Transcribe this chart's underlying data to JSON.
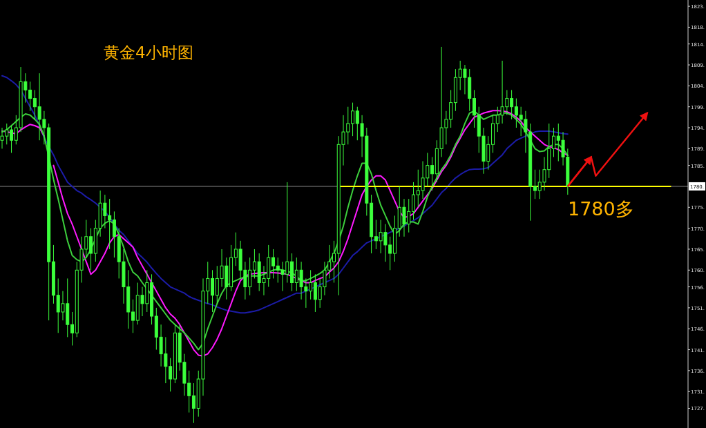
{
  "chart_data": {
    "type": "candlestick",
    "title": "黄金4小时图",
    "annotations": [
      "1780多"
    ],
    "tick_labels": "y",
    "ylim": [
      1722.3,
      1824.5
    ],
    "yticks": [
      {
        "value": 1823,
        "label": "1823."
      },
      {
        "value": 1818,
        "label": "1818."
      },
      {
        "value": 1814,
        "label": "1814."
      },
      {
        "value": 1809,
        "label": "1809."
      },
      {
        "value": 1804,
        "label": "1804."
      },
      {
        "value": 1799,
        "label": "1799."
      },
      {
        "value": 1794,
        "label": "1794."
      },
      {
        "value": 1789,
        "label": "1789."
      },
      {
        "value": 1785,
        "label": "1785."
      },
      {
        "value": 1775,
        "label": "1775."
      },
      {
        "value": 1770,
        "label": "1770."
      },
      {
        "value": 1765,
        "label": "1765."
      },
      {
        "value": 1760,
        "label": "1760."
      },
      {
        "value": 1756,
        "label": "1756."
      },
      {
        "value": 1751,
        "label": "1751."
      },
      {
        "value": 1746,
        "label": "1746."
      },
      {
        "value": 1741,
        "label": "1741."
      },
      {
        "value": 1736,
        "label": "1736."
      },
      {
        "value": 1731,
        "label": "1731."
      },
      {
        "value": 1727,
        "label": "1727."
      }
    ],
    "ref_lines": [
      {
        "axis": "y",
        "value": 1780,
        "label": "1780.",
        "color": "#8c8c8c"
      }
    ],
    "categories": [
      null,
      null,
      null,
      null,
      null,
      null,
      null,
      null,
      null,
      null,
      null,
      null,
      null,
      null,
      null,
      null,
      null,
      null,
      null,
      null,
      null,
      null,
      null,
      null,
      null,
      null,
      null,
      null,
      null,
      null,
      null,
      null,
      null,
      null,
      null,
      null,
      null,
      null,
      null,
      null,
      null,
      null,
      null,
      null,
      null,
      null,
      null,
      null,
      null,
      null,
      null,
      null,
      null,
      null,
      null,
      null,
      null,
      null,
      null,
      null,
      null,
      null,
      null,
      null,
      null,
      null,
      null,
      null,
      null,
      null,
      null,
      null,
      null,
      null,
      null,
      null,
      null,
      null,
      null,
      null,
      null,
      null,
      null,
      null,
      null,
      null,
      null,
      null,
      null,
      null,
      null,
      null,
      null,
      null,
      null,
      null,
      null,
      null,
      null,
      null,
      null,
      null,
      null,
      null,
      null,
      null,
      null,
      null,
      null,
      null,
      null,
      null,
      null,
      null,
      null,
      null,
      null,
      null,
      null,
      null,
      null,
      null,
      null,
      null,
      null,
      null,
      null,
      null,
      null,
      null,
      null,
      null,
      null,
      null,
      null,
      null,
      null,
      null,
      null,
      null,
      null,
      null,
      null,
      null,
      null,
      null,
      null
    ],
    "series": [
      {
        "color": "#3cff3c",
        "ohlc": [
          [
            1791,
            1794,
            1789,
            1792
          ],
          [
            1792,
            1795,
            1790,
            1793.5
          ],
          [
            1793.5,
            1794.5,
            1788,
            1791
          ],
          [
            1791,
            1797,
            1790,
            1794
          ],
          [
            1794,
            1808.5,
            1793,
            1805
          ],
          [
            1805,
            1807,
            1800,
            1803
          ],
          [
            1803,
            1805,
            1798,
            1801
          ],
          [
            1801,
            1803,
            1796,
            1799
          ],
          [
            1799,
            1807,
            1791,
            1796
          ],
          [
            1796,
            1798,
            1790,
            1794
          ],
          [
            1794,
            1795,
            1748,
            1762
          ],
          [
            1762,
            1766,
            1752,
            1754
          ],
          [
            1754,
            1758,
            1745,
            1750
          ],
          [
            1750,
            1755,
            1748,
            1752
          ],
          [
            1752,
            1758,
            1744,
            1747
          ],
          [
            1747,
            1750,
            1742,
            1745
          ],
          [
            1745,
            1762,
            1744,
            1760
          ],
          [
            1760,
            1768,
            1757,
            1765
          ],
          [
            1765,
            1772,
            1763,
            1768
          ],
          [
            1768,
            1770,
            1760,
            1764
          ],
          [
            1764,
            1772,
            1762,
            1770
          ],
          [
            1770,
            1779,
            1768,
            1776
          ],
          [
            1776,
            1778,
            1770,
            1773
          ],
          [
            1773,
            1777,
            1765,
            1772
          ],
          [
            1772,
            1774,
            1763,
            1768
          ],
          [
            1768,
            1770,
            1758,
            1762
          ],
          [
            1762,
            1765,
            1752,
            1756
          ],
          [
            1756,
            1760,
            1746,
            1750
          ],
          [
            1750,
            1753,
            1745,
            1748
          ],
          [
            1748,
            1757,
            1747,
            1754
          ],
          [
            1754,
            1756,
            1749,
            1752
          ],
          [
            1752,
            1760,
            1750,
            1757
          ],
          [
            1757,
            1759,
            1747,
            1749
          ],
          [
            1749,
            1751,
            1741,
            1744
          ],
          [
            1744,
            1747,
            1737,
            1740
          ],
          [
            1740,
            1744,
            1733,
            1737
          ],
          [
            1737,
            1739,
            1731,
            1734
          ],
          [
            1734,
            1747,
            1733,
            1745
          ],
          [
            1745,
            1747,
            1736,
            1738
          ],
          [
            1738,
            1740,
            1730,
            1733
          ],
          [
            1733,
            1736,
            1726,
            1730
          ],
          [
            1730,
            1733,
            1723.5,
            1727
          ],
          [
            1727,
            1736,
            1725,
            1734
          ],
          [
            1734,
            1758,
            1730,
            1755
          ],
          [
            1755,
            1762,
            1752,
            1758
          ],
          [
            1758,
            1760,
            1750,
            1754
          ],
          [
            1754,
            1761,
            1752,
            1758
          ],
          [
            1758,
            1765,
            1756,
            1761
          ],
          [
            1761,
            1763,
            1753,
            1756
          ],
          [
            1756,
            1766,
            1755,
            1763
          ],
          [
            1763,
            1769,
            1761,
            1765
          ],
          [
            1765,
            1767,
            1758,
            1760
          ],
          [
            1760,
            1762,
            1753,
            1756
          ],
          [
            1756,
            1763,
            1754,
            1760
          ],
          [
            1760,
            1765,
            1758,
            1762
          ],
          [
            1762,
            1764,
            1755,
            1757
          ],
          [
            1757,
            1761,
            1754,
            1758
          ],
          [
            1758,
            1766,
            1756,
            1763
          ],
          [
            1763,
            1765,
            1758,
            1761
          ],
          [
            1761,
            1763,
            1757,
            1760
          ],
          [
            1760,
            1762,
            1755,
            1759
          ],
          [
            1759,
            1781,
            1757,
            1762
          ],
          [
            1762,
            1764,
            1755,
            1757
          ],
          [
            1757,
            1763,
            1755,
            1760
          ],
          [
            1760,
            1762,
            1753,
            1756
          ],
          [
            1756,
            1758,
            1751,
            1755
          ],
          [
            1755,
            1760,
            1753,
            1757
          ],
          [
            1757,
            1759,
            1750,
            1753
          ],
          [
            1753,
            1758,
            1751,
            1756
          ],
          [
            1756,
            1762,
            1754,
            1760
          ],
          [
            1760,
            1766,
            1758,
            1762
          ],
          [
            1762,
            1767,
            1757,
            1764
          ],
          [
            1764,
            1792,
            1754,
            1790
          ],
          [
            1790,
            1797,
            1785,
            1793
          ],
          [
            1793,
            1799,
            1790,
            1795
          ],
          [
            1795,
            1800,
            1792,
            1798
          ],
          [
            1798,
            1799,
            1791,
            1795
          ],
          [
            1795,
            1797,
            1787,
            1792
          ],
          [
            1792,
            1794,
            1773,
            1776
          ],
          [
            1776,
            1778,
            1764,
            1768
          ],
          [
            1768,
            1772,
            1765,
            1767
          ],
          [
            1767,
            1772,
            1764,
            1769
          ],
          [
            1769,
            1771,
            1762,
            1766
          ],
          [
            1766,
            1768,
            1760,
            1764
          ],
          [
            1764,
            1773,
            1762,
            1770
          ],
          [
            1770,
            1780,
            1768,
            1775
          ],
          [
            1775,
            1777,
            1768,
            1771
          ],
          [
            1771,
            1777,
            1769,
            1774
          ],
          [
            1774,
            1781,
            1772,
            1778
          ],
          [
            1778,
            1784,
            1775,
            1779
          ],
          [
            1779,
            1786,
            1777,
            1782
          ],
          [
            1782,
            1788,
            1780,
            1785
          ],
          [
            1785,
            1787,
            1779,
            1783
          ],
          [
            1783,
            1791,
            1781,
            1789
          ],
          [
            1789,
            1813.3,
            1787,
            1794
          ],
          [
            1794,
            1798,
            1790,
            1796
          ],
          [
            1796,
            1803,
            1794,
            1800
          ],
          [
            1800,
            1808,
            1798,
            1806
          ],
          [
            1806,
            1810,
            1803,
            1808
          ],
          [
            1808,
            1809,
            1802,
            1806
          ],
          [
            1806,
            1808,
            1798,
            1801
          ],
          [
            1801,
            1803,
            1794,
            1797
          ],
          [
            1797,
            1799,
            1788,
            1792
          ],
          [
            1792,
            1794,
            1783,
            1786
          ],
          [
            1786,
            1792,
            1784,
            1790
          ],
          [
            1790,
            1797,
            1788,
            1795
          ],
          [
            1795,
            1799,
            1793,
            1797
          ],
          [
            1797,
            1810,
            1795,
            1799
          ],
          [
            1799,
            1803,
            1797,
            1801
          ],
          [
            1801,
            1803,
            1796,
            1799
          ],
          [
            1799,
            1801,
            1794,
            1797
          ],
          [
            1797,
            1799,
            1792,
            1796
          ],
          [
            1796,
            1798,
            1788,
            1793
          ],
          [
            1793,
            1795,
            1771.8,
            1780
          ],
          [
            1780,
            1784,
            1777,
            1779
          ],
          [
            1779,
            1784,
            1777,
            1781
          ],
          [
            1781,
            1787,
            1779,
            1784
          ],
          [
            1784,
            1795,
            1782,
            1789
          ],
          [
            1789,
            1794,
            1787,
            1792
          ],
          [
            1792,
            1795,
            1786,
            1791
          ],
          [
            1791,
            1793,
            1785,
            1787
          ],
          [
            1787,
            1789,
            1778,
            1780
          ],
          null,
          null,
          null,
          null,
          null,
          null,
          null,
          null,
          null,
          null,
          null,
          null,
          null,
          null,
          null,
          null,
          null,
          null,
          null,
          null,
          null,
          null,
          null,
          null,
          null
        ]
      },
      {
        "type": "line",
        "color": "#1c1ca8",
        "values": [
          1806.4,
          1806,
          1805.2,
          1804.3,
          1803,
          1801,
          1799,
          1797,
          1794.5,
          1791.6,
          1789.5,
          1787.5,
          1785,
          1783,
          1781,
          1780,
          1779,
          1778.4,
          1777.5,
          1776.8,
          1776,
          1775,
          1774,
          1772.6,
          1771,
          1769.5,
          1768.5,
          1767,
          1765.5,
          1764,
          1763,
          1761.9,
          1760.5,
          1759.2,
          1758,
          1757,
          1756,
          1755.5,
          1755,
          1754.5,
          1753.7,
          1753.2,
          1752.8,
          1752.4,
          1752,
          1751.7,
          1751.2,
          1750.8,
          1750.4,
          1750.2,
          1750,
          1749.8,
          1749.8,
          1750,
          1750.2,
          1750.5,
          1751,
          1751.5,
          1752,
          1752.5,
          1753,
          1753.5,
          1754,
          1754.5,
          1754.5,
          1755,
          1755.5,
          1756,
          1756.5,
          1757,
          1757.5,
          1758,
          1759,
          1760.5,
          1762,
          1763.5,
          1764.4,
          1765.5,
          1766.5,
          1767,
          1767.5,
          1768,
          1768.5,
          1769,
          1769.5,
          1770,
          1770.5,
          1771.3,
          1771.8,
          1772.5,
          1773.5,
          1774.5,
          1775.5,
          1777,
          1778.5,
          1779.5,
          1780.9,
          1782,
          1782.8,
          1783.5,
          1784,
          1784.1,
          1784.1,
          1784.2,
          1784.5,
          1785.5,
          1786.5,
          1787.5,
          1789,
          1790,
          1791,
          1791.5,
          1792,
          1792.5,
          1793,
          1793.2,
          1793.2,
          1793.2,
          1793,
          1792.8,
          1792.6,
          1792.5,
          null,
          null,
          null,
          null,
          null,
          null,
          null,
          null,
          null,
          null,
          null,
          null,
          null,
          null,
          null,
          null,
          null,
          null,
          null,
          null,
          null,
          null,
          null,
          null,
          null
        ]
      },
      {
        "type": "line",
        "color": "#ff1aff",
        "values": [
          1793.2,
          1793,
          1792.8,
          1792.5,
          1793.5,
          1794.2,
          1794.8,
          1794.5,
          1794,
          1792,
          null,
          1785,
          1781,
          1777,
          1773.5,
          1771,
          1768,
          1765,
          1762,
          1759,
          1760,
          1762,
          1764,
          1766.5,
          1768,
          1768.5,
          1767.5,
          1766.5,
          1765.5,
          1763,
          1761,
          1759,
          1757,
          1755,
          1753,
          1751,
          1749.5,
          1748.5,
          1747,
          1745,
          1743,
          1741,
          1739.7,
          1739.5,
          1740,
          1741.5,
          1743.5,
          1746,
          1749,
          1752,
          1755,
          1757.5,
          1758.6,
          1759,
          1759.2,
          1759.3,
          1759.4,
          1759.4,
          1759.4,
          1759.3,
          1759.2,
          1759,
          1758.5,
          1758,
          1757.5,
          1757,
          1757,
          1757.5,
          1758,
          1758.4,
          1759.5,
          1760.5,
          1762,
          1764.5,
          1767.5,
          1771,
          1774.5,
          1778,
          1780,
          1781.5,
          1782.5,
          1782.5,
          1781.5,
          1779,
          1776.5,
          1774,
          1772.6,
          1772.8,
          1773.5,
          1775,
          1776.5,
          1778,
          1779.5,
          1781.5,
          1783.5,
          1785,
          1787,
          1789.5,
          1791.5,
          1793.5,
          1795,
          1796.5,
          1797,
          1797.5,
          1797.8,
          1798.1,
          1798.1,
          1798,
          1797.8,
          1797.3,
          1796.5,
          1795.5,
          1794,
          1793,
          1792,
          1791,
          1790,
          1789.5,
          1789.2,
          1788.8,
          1788,
          1787.4,
          null,
          null,
          null,
          null,
          null,
          null,
          null,
          null,
          null,
          null,
          null,
          null,
          null,
          null,
          null,
          null,
          null,
          null,
          null,
          null,
          null,
          null,
          null,
          null,
          null
        ]
      },
      {
        "type": "line",
        "color": "#3ccf3c",
        "values": [
          1793,
          1793.5,
          1794.5,
          1795.5,
          1796.5,
          1797.3,
          1797,
          1796,
          1794.8,
          1792,
          1787,
          1781.7,
          1777,
          1772,
          1767,
          1763.5,
          1762.5,
          1762,
          1763,
          1765,
          1767.5,
          1770,
          1771.2,
          1771.8,
          1771,
          1768.5,
          1765.5,
          1762,
          1759.5,
          1758.6,
          1757,
          1755.5,
          1754,
          1752.5,
          1751,
          1749.5,
          1748,
          1747,
          1746,
          1745,
          1743.8,
          1742.5,
          1741,
          1742.5,
          1746,
          1749,
          1752,
          1754.5,
          1756.3,
          1757,
          1757.5,
          1758,
          1758.4,
          1758.6,
          1758.6,
          1758.6,
          1759,
          1759.5,
          1760,
          1760.2,
          1760,
          1759.7,
          1759.4,
          1758.5,
          1757.5,
          1757.5,
          1758,
          1758.6,
          1759.2,
          1760,
          1761.9,
          1764,
          1767,
          1770.5,
          1775,
          1779,
          1782.5,
          1785.5,
          1785.5,
          1783,
          1779,
          1775.5,
          1773,
          1770.5,
          1768.5,
          1769.5,
          1771,
          1771.5,
          1771.5,
          1771,
          1774,
          1777.5,
          1780,
          1782,
          1784,
          1785.5,
          1787.5,
          1790,
          1792,
          1795,
          1797.5,
          1798,
          1797,
          1796,
          1796.5,
          1797,
          1797,
          1797.5,
          1797.5,
          1797,
          1796,
          1794.8,
          1793,
          1791,
          1789,
          1788.3,
          1788.5,
          1789.5,
          1790,
          1790,
          1789,
          1787.4,
          null,
          null,
          null,
          null,
          null,
          null,
          null,
          null,
          null,
          null,
          null,
          null,
          null,
          null,
          null,
          null,
          null,
          null,
          null,
          null,
          null,
          null,
          null,
          null,
          null
        ]
      },
      {
        "type": "line",
        "color": "#ffff00",
        "values": [
          null,
          null,
          null,
          null,
          null,
          null,
          null,
          null,
          null,
          null,
          null,
          null,
          null,
          null,
          null,
          null,
          null,
          null,
          null,
          null,
          null,
          null,
          null,
          null,
          null,
          null,
          null,
          null,
          null,
          null,
          null,
          null,
          null,
          null,
          null,
          null,
          null,
          null,
          null,
          null,
          null,
          null,
          null,
          null,
          null,
          null,
          null,
          null,
          null,
          null,
          null,
          null,
          null,
          null,
          null,
          null,
          null,
          null,
          null,
          null,
          null,
          null,
          null,
          null,
          null,
          null,
          null,
          null,
          null,
          null,
          null,
          null,
          1780,
          1780,
          1780,
          1780,
          1780,
          1780,
          1780,
          1780,
          1780,
          1780,
          1780,
          1780,
          1780,
          1780,
          1780,
          1780,
          1780,
          1780,
          1780,
          1780,
          1780,
          1780,
          1780,
          1780,
          1780,
          1780,
          1780,
          1780,
          1780,
          1780,
          1780,
          1780,
          1780,
          1780,
          1780,
          1780,
          1780,
          1780,
          1780,
          1780,
          1780,
          1780,
          1780,
          1780,
          1780,
          1780,
          1780,
          1780,
          1780,
          1780,
          1780,
          1780,
          1780,
          1780,
          1780,
          1780,
          1780,
          1780,
          1780,
          1780,
          1780,
          1780,
          1780,
          1780,
          1780,
          1780,
          1780,
          1780,
          1780,
          1780,
          1780,
          1780,
          null,
          null,
          null
        ]
      }
    ]
  }
}
